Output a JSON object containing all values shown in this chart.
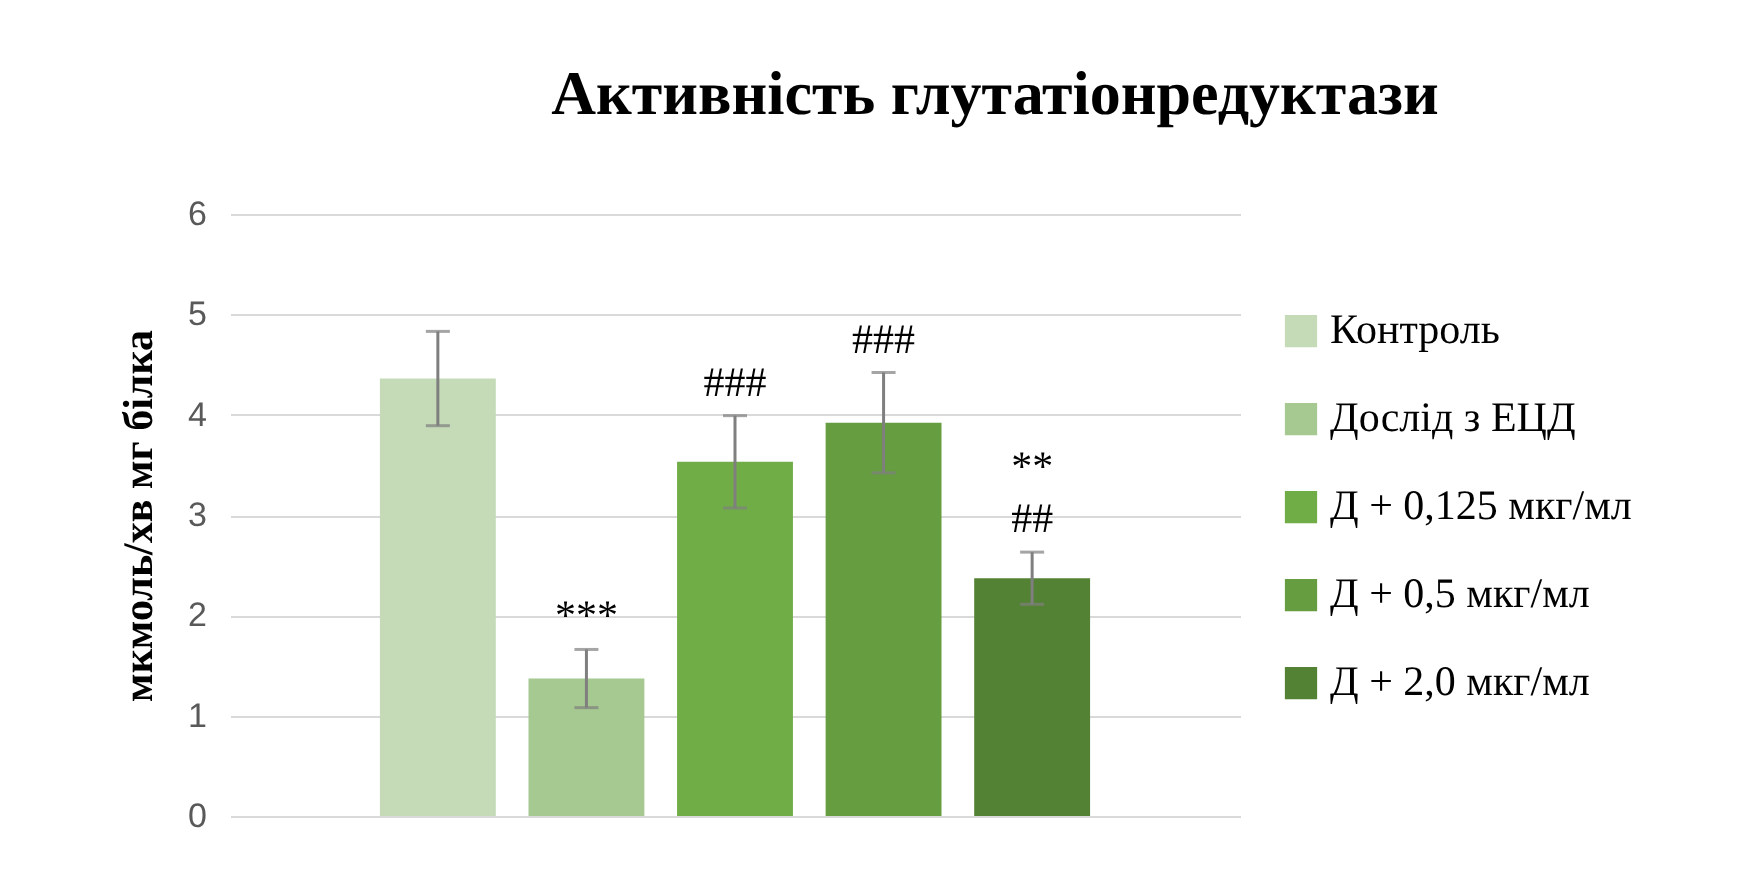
{
  "chart_data": {
    "type": "bar",
    "title": "Активність глутатіонредуктази",
    "ylabel": "мкмоль/хв мг білка",
    "categories": [
      null
    ],
    "series": [
      {
        "name": "Контроль",
        "color": "#c5dbb8",
        "values": [
          4.36
        ],
        "errors": [
          0.47
        ]
      },
      {
        "name": "Дослід з ЕЦД",
        "color": "#a5c991",
        "values": [
          1.37
        ],
        "errors": [
          0.29
        ],
        "value_labels": [
          "***"
        ]
      },
      {
        "name": "Д + 0,125 мкг/мл",
        "color": "#70ad47",
        "values": [
          3.53
        ],
        "errors": [
          0.46
        ],
        "value_labels": [
          "###"
        ]
      },
      {
        "name": "Д + 0,5 мкг/мл",
        "color": "#659d40",
        "values": [
          3.92
        ],
        "errors": [
          0.5
        ],
        "value_labels": [
          "###"
        ]
      },
      {
        "name": "Д + 2,0 мкг/мл",
        "color": "#548235",
        "values": [
          2.37
        ],
        "errors": [
          0.26
        ],
        "value_labels": [
          "**\n##"
        ]
      }
    ],
    "ylim": [
      0,
      6
    ],
    "yticks": [
      0,
      1,
      2,
      3,
      4,
      5,
      6
    ],
    "grid": "y",
    "legend": "right"
  }
}
